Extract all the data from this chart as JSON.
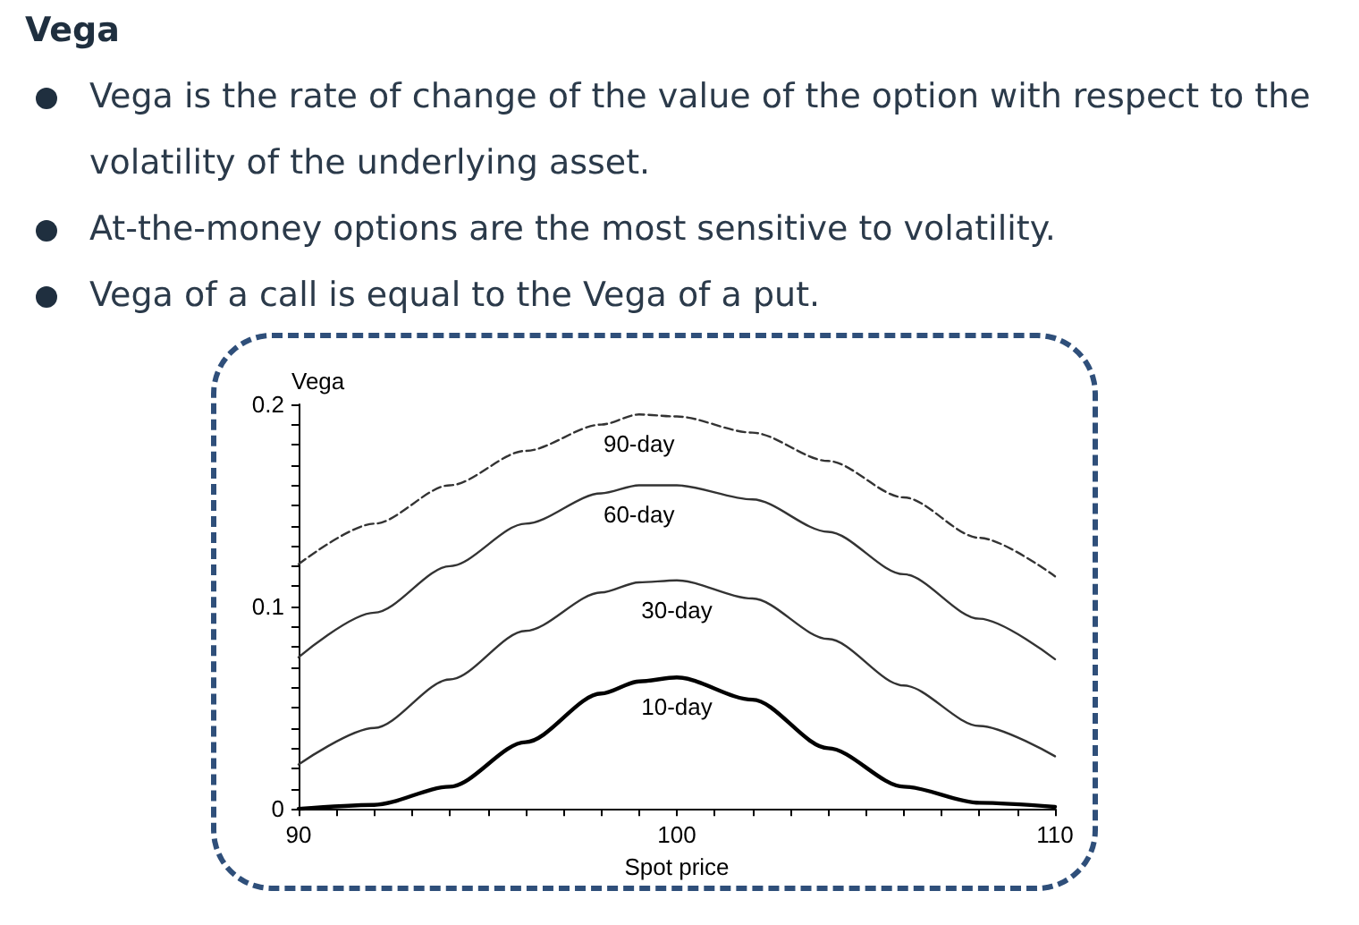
{
  "chart_data": {
    "type": "line",
    "title": "Vega",
    "annotations": [
      "Vega is the rate of change of the value of the option with respect to the volatility of the underlying asset.",
      "At-the-money options are the most sensitive to volatility.",
      "Vega of a call is equal to the Vega of a put."
    ],
    "xlabel": "Spot price",
    "ylabel": "Vega",
    "x": [
      90,
      92,
      94,
      96,
      98,
      99,
      100,
      102,
      104,
      106,
      108,
      110
    ],
    "series": [
      {
        "name": "90-day",
        "color": "#333333",
        "line_style": "dashed",
        "values": [
          0.121,
          0.141,
          0.16,
          0.177,
          0.19,
          0.195,
          0.194,
          0.186,
          0.172,
          0.154,
          0.134,
          0.115
        ]
      },
      {
        "name": "60-day",
        "color": "#333333",
        "line_style": "solid",
        "values": [
          0.075,
          0.097,
          0.12,
          0.141,
          0.156,
          0.16,
          0.16,
          0.153,
          0.137,
          0.116,
          0.094,
          0.074
        ]
      },
      {
        "name": "30-day",
        "color": "#333333",
        "line_style": "solid",
        "values": [
          0.022,
          0.04,
          0.064,
          0.088,
          0.107,
          0.112,
          0.113,
          0.104,
          0.084,
          0.061,
          0.041,
          0.026
        ]
      },
      {
        "name": "10-day",
        "color": "#000000",
        "line_style": "solid",
        "values": [
          0.0,
          0.002,
          0.011,
          0.033,
          0.057,
          0.063,
          0.065,
          0.054,
          0.03,
          0.011,
          0.003,
          0.001
        ]
      }
    ],
    "xlim": [
      90,
      110
    ],
    "xticks": [
      90,
      {
        "value": 91,
        "label": null
      },
      {
        "value": 92,
        "label": null
      },
      {
        "value": 93,
        "label": null
      },
      {
        "value": 94,
        "label": null
      },
      {
        "value": 95,
        "label": null
      },
      {
        "value": 96,
        "label": null
      },
      {
        "value": 97,
        "label": null
      },
      {
        "value": 98,
        "label": null
      },
      {
        "value": 99,
        "label": null
      },
      100,
      {
        "value": 101,
        "label": null
      },
      {
        "value": 102,
        "label": null
      },
      {
        "value": 103,
        "label": null
      },
      {
        "value": 104,
        "label": null
      },
      {
        "value": 105,
        "label": null
      },
      {
        "value": 106,
        "label": null
      },
      {
        "value": 107,
        "label": null
      },
      {
        "value": 108,
        "label": null
      },
      {
        "value": 109,
        "label": null
      },
      110
    ],
    "ylim": [
      0,
      0.2
    ],
    "yticks": [
      0,
      {
        "value": 0.01,
        "label": null
      },
      {
        "value": 0.02,
        "label": null
      },
      {
        "value": 0.03,
        "label": null
      },
      {
        "value": 0.04,
        "label": null
      },
      {
        "value": 0.05,
        "label": null
      },
      {
        "value": 0.06,
        "label": null
      },
      {
        "value": 0.07,
        "label": null
      },
      {
        "value": 0.08,
        "label": null
      },
      {
        "value": 0.09,
        "label": null
      },
      0.1,
      {
        "value": 0.11,
        "label": null
      },
      {
        "value": 0.12,
        "label": null
      },
      {
        "value": 0.13,
        "label": null
      },
      {
        "value": 0.14,
        "label": null
      },
      {
        "value": 0.15,
        "label": null
      },
      {
        "value": 0.16,
        "label": null
      },
      {
        "value": 0.17,
        "label": null
      },
      {
        "value": 0.18,
        "label": null
      },
      {
        "value": 0.19,
        "label": null
      },
      0.2
    ],
    "grid": false,
    "legend": false,
    "marker": "none"
  }
}
